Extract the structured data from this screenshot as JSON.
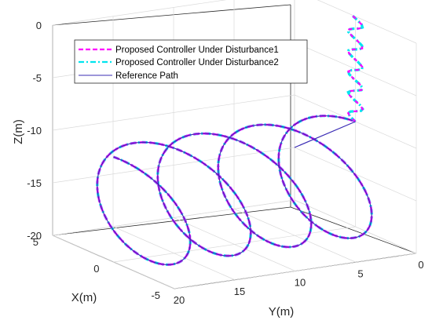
{
  "chart_data": {
    "type": "line3d",
    "xlabel": "X(m)",
    "ylabel": "Y(m)",
    "zlabel": "Z(m)",
    "xlim": [
      -5,
      5
    ],
    "ylim": [
      0,
      20
    ],
    "zlim": [
      -20,
      0
    ],
    "x_ticks": [
      "5",
      "0",
      "-5"
    ],
    "y_ticks": [
      "20",
      "15",
      "10",
      "5",
      "0"
    ],
    "z_ticks": [
      "0",
      "-5",
      "-10",
      "-15",
      "-20"
    ],
    "grid": true,
    "legend_position": "top",
    "legend": [
      "Proposed Controller Under Disturbance1",
      "Proposed Controller Under Disturbance2",
      "Reference Path"
    ],
    "series": [
      {
        "name": "Proposed Controller Under Disturbance1",
        "color": "#ff00ff",
        "style": "dashed"
      },
      {
        "name": "Proposed Controller Under Disturbance2",
        "color": "#00e5ee",
        "style": "dashdot"
      },
      {
        "name": "Reference Path",
        "color": "#3b2db5",
        "style": "solid"
      }
    ],
    "path_description_values": {
      "helix_radius": 5,
      "y_start": 20,
      "y_end": 0,
      "z_start": -10,
      "z_end": -10,
      "turns": 4
    }
  }
}
